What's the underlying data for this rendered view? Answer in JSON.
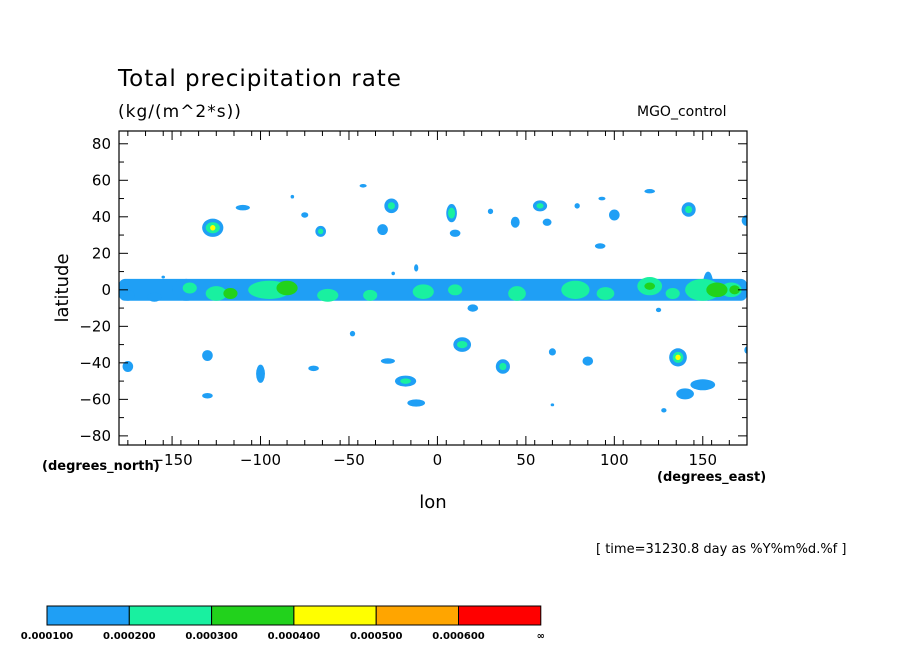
{
  "header": {
    "title": "Total precipitation rate",
    "subtitle": "(kg/(m^2*s))",
    "run_label": "MGO_control"
  },
  "footer": {
    "y_unit": "(degrees_north)",
    "x_unit": "(degrees_east)",
    "timestamp": "[ time=31230.8 day as %Y%m%d.%f ]"
  },
  "chart_data": {
    "type": "heatmap",
    "title": "Total precipitation rate",
    "subtitle": "(kg/(m^2*s))",
    "xlabel": "lon",
    "ylabel": "latitude",
    "xlim": [
      -180,
      175
    ],
    "ylim": [
      -85,
      87
    ],
    "xticks": [
      -150,
      -100,
      -50,
      0,
      50,
      100,
      150
    ],
    "xtick_labels": [
      "−150",
      "−100",
      "−50",
      "0",
      "50",
      "100",
      "150"
    ],
    "yticks": [
      80,
      60,
      40,
      20,
      0,
      -20,
      -40,
      -60,
      -80
    ],
    "ytick_labels": [
      "80",
      "60",
      "40",
      "20",
      "0",
      "−20",
      "−40",
      "−60",
      "−80"
    ],
    "grid": false,
    "colorbar": {
      "bins": [
        {
          "low": "0.000100",
          "color": "#1f9ff5"
        },
        {
          "low": "0.000200",
          "color": "#19f0a0"
        },
        {
          "low": "0.000300",
          "color": "#22d21c"
        },
        {
          "low": "0.000400",
          "color": "#ffff00"
        },
        {
          "low": "0.000500",
          "color": "#ffa500"
        },
        {
          "low": "0.000600",
          "color": "#ff0000"
        }
      ],
      "labels": [
        "0.000100",
        "0.000200",
        "0.000300",
        "0.000400",
        "0.000500",
        "0.000600",
        "∞"
      ]
    },
    "equatorial_band": {
      "lat_center": 0,
      "lat_halfwidth": 6,
      "lon_min": -180,
      "lon_max": 175
    },
    "blobs": [
      {
        "lon": -175,
        "lat": -3,
        "rx": 4,
        "ry": 3,
        "level": 1
      },
      {
        "lon": -160,
        "lat": -4,
        "rx": 4,
        "ry": 2.5,
        "level": 1
      },
      {
        "lon": -142,
        "lat": 0,
        "rx": 8,
        "ry": 6,
        "level": 1
      },
      {
        "lon": -140,
        "lat": 1,
        "rx": 4,
        "ry": 3,
        "level": 2
      },
      {
        "lon": -125,
        "lat": -2,
        "rx": 6,
        "ry": 4,
        "level": 2
      },
      {
        "lon": -117,
        "lat": -2,
        "rx": 4,
        "ry": 3,
        "level": 3
      },
      {
        "lon": -95,
        "lat": 0,
        "rx": 12,
        "ry": 5,
        "level": 2
      },
      {
        "lon": -85,
        "lat": 1,
        "rx": 6,
        "ry": 4,
        "level": 3
      },
      {
        "lon": -62,
        "lat": -3,
        "rx": 6,
        "ry": 3.5,
        "level": 2
      },
      {
        "lon": -38,
        "lat": -3,
        "rx": 4,
        "ry": 3,
        "level": 2
      },
      {
        "lon": -8,
        "lat": -1,
        "rx": 6,
        "ry": 4,
        "level": 2
      },
      {
        "lon": 10,
        "lat": 0,
        "rx": 4,
        "ry": 3,
        "level": 2
      },
      {
        "lon": 45,
        "lat": -2,
        "rx": 5,
        "ry": 4,
        "level": 2
      },
      {
        "lon": 78,
        "lat": 0,
        "rx": 8,
        "ry": 5,
        "level": 2
      },
      {
        "lon": 95,
        "lat": -2,
        "rx": 5,
        "ry": 3.5,
        "level": 2
      },
      {
        "lon": 120,
        "lat": 2,
        "rx": 7,
        "ry": 5,
        "level": 2
      },
      {
        "lon": 120,
        "lat": 2,
        "rx": 3,
        "ry": 2,
        "level": 3
      },
      {
        "lon": 133,
        "lat": -2,
        "rx": 4,
        "ry": 3,
        "level": 2
      },
      {
        "lon": 150,
        "lat": 0,
        "rx": 10,
        "ry": 6,
        "level": 2
      },
      {
        "lon": 153,
        "lat": 2,
        "rx": 3,
        "ry": 8,
        "level": 1
      },
      {
        "lon": 158,
        "lat": 0,
        "rx": 6,
        "ry": 4,
        "level": 3
      },
      {
        "lon": 166,
        "lat": 0,
        "rx": 6,
        "ry": 4,
        "level": 2
      },
      {
        "lon": 168,
        "lat": 0,
        "rx": 3,
        "ry": 2.5,
        "level": 3
      },
      {
        "lon": -127,
        "lat": 34,
        "rx": 6,
        "ry": 5,
        "level": 1
      },
      {
        "lon": -127,
        "lat": 34,
        "rx": 4,
        "ry": 3,
        "level": 2
      },
      {
        "lon": -127,
        "lat": 34,
        "rx": 1.5,
        "ry": 1.5,
        "level": 4
      },
      {
        "lon": -110,
        "lat": 45,
        "rx": 4,
        "ry": 1.5,
        "level": 1
      },
      {
        "lon": -82,
        "lat": 51,
        "rx": 1,
        "ry": 1,
        "level": 1
      },
      {
        "lon": -75,
        "lat": 41,
        "rx": 2,
        "ry": 1.5,
        "level": 1
      },
      {
        "lon": -66,
        "lat": 32,
        "rx": 3,
        "ry": 3,
        "level": 1
      },
      {
        "lon": -66,
        "lat": 32,
        "rx": 1.5,
        "ry": 1.5,
        "level": 2
      },
      {
        "lon": -42,
        "lat": 57,
        "rx": 2,
        "ry": 1,
        "level": 1
      },
      {
        "lon": -31,
        "lat": 33,
        "rx": 3,
        "ry": 3,
        "level": 1
      },
      {
        "lon": -26,
        "lat": 46,
        "rx": 4,
        "ry": 4,
        "level": 1
      },
      {
        "lon": -26,
        "lat": 46,
        "rx": 2,
        "ry": 2,
        "level": 2
      },
      {
        "lon": 8,
        "lat": 42,
        "rx": 3,
        "ry": 5,
        "level": 1
      },
      {
        "lon": 8,
        "lat": 42,
        "rx": 2,
        "ry": 3,
        "level": 2
      },
      {
        "lon": 10,
        "lat": 31,
        "rx": 3,
        "ry": 2,
        "level": 1
      },
      {
        "lon": 30,
        "lat": 43,
        "rx": 1.5,
        "ry": 1.5,
        "level": 1
      },
      {
        "lon": 44,
        "lat": 37,
        "rx": 2.5,
        "ry": 3,
        "level": 1
      },
      {
        "lon": 58,
        "lat": 46,
        "rx": 4,
        "ry": 3,
        "level": 1
      },
      {
        "lon": 58,
        "lat": 46,
        "rx": 2,
        "ry": 1.5,
        "level": 2
      },
      {
        "lon": 62,
        "lat": 37,
        "rx": 2.5,
        "ry": 2,
        "level": 1
      },
      {
        "lon": 79,
        "lat": 46,
        "rx": 1.5,
        "ry": 1.5,
        "level": 1
      },
      {
        "lon": 93,
        "lat": 50,
        "rx": 2,
        "ry": 1,
        "level": 1
      },
      {
        "lon": 100,
        "lat": 41,
        "rx": 3,
        "ry": 3,
        "level": 1
      },
      {
        "lon": 92,
        "lat": 24,
        "rx": 3,
        "ry": 1.5,
        "level": 1
      },
      {
        "lon": 120,
        "lat": 54,
        "rx": 3,
        "ry": 1.2,
        "level": 1
      },
      {
        "lon": 142,
        "lat": 44,
        "rx": 4,
        "ry": 4,
        "level": 1
      },
      {
        "lon": 142,
        "lat": 44,
        "rx": 2,
        "ry": 2,
        "level": 2
      },
      {
        "lon": 175,
        "lat": 38,
        "rx": 3,
        "ry": 3,
        "level": 1
      },
      {
        "lon": -12,
        "lat": 12,
        "rx": 1.2,
        "ry": 2,
        "level": 1
      },
      {
        "lon": -25,
        "lat": 9,
        "rx": 1,
        "ry": 1,
        "level": 1
      },
      {
        "lon": -155,
        "lat": 7,
        "rx": 1,
        "ry": 0.8,
        "level": 1
      },
      {
        "lon": -175,
        "lat": -42,
        "rx": 3,
        "ry": 3,
        "level": 1
      },
      {
        "lon": -130,
        "lat": -36,
        "rx": 3,
        "ry": 3,
        "level": 1
      },
      {
        "lon": -100,
        "lat": -46,
        "rx": 2.5,
        "ry": 5,
        "level": 1
      },
      {
        "lon": -70,
        "lat": -43,
        "rx": 3,
        "ry": 1.5,
        "level": 1
      },
      {
        "lon": -48,
        "lat": -24,
        "rx": 1.5,
        "ry": 1.5,
        "level": 1
      },
      {
        "lon": -28,
        "lat": -39,
        "rx": 4,
        "ry": 1.5,
        "level": 1
      },
      {
        "lon": -18,
        "lat": -50,
        "rx": 6,
        "ry": 3,
        "level": 1
      },
      {
        "lon": -18,
        "lat": -50,
        "rx": 3,
        "ry": 1.5,
        "level": 2
      },
      {
        "lon": -12,
        "lat": -62,
        "rx": 5,
        "ry": 2,
        "level": 1
      },
      {
        "lon": -130,
        "lat": -58,
        "rx": 3,
        "ry": 1.5,
        "level": 1
      },
      {
        "lon": 14,
        "lat": -30,
        "rx": 5,
        "ry": 4,
        "level": 1
      },
      {
        "lon": 14,
        "lat": -30,
        "rx": 3,
        "ry": 2,
        "level": 2
      },
      {
        "lon": 37,
        "lat": -42,
        "rx": 4,
        "ry": 4,
        "level": 1
      },
      {
        "lon": 37,
        "lat": -42,
        "rx": 2,
        "ry": 2,
        "level": 2
      },
      {
        "lon": 65,
        "lat": -34,
        "rx": 2,
        "ry": 2,
        "level": 1
      },
      {
        "lon": 85,
        "lat": -39,
        "rx": 3,
        "ry": 2.5,
        "level": 1
      },
      {
        "lon": 136,
        "lat": -37,
        "rx": 5,
        "ry": 5,
        "level": 1
      },
      {
        "lon": 136,
        "lat": -37,
        "rx": 3,
        "ry": 3,
        "level": 2
      },
      {
        "lon": 136,
        "lat": -37,
        "rx": 1.5,
        "ry": 1.5,
        "level": 4
      },
      {
        "lon": 150,
        "lat": -52,
        "rx": 7,
        "ry": 3,
        "level": 1
      },
      {
        "lon": 140,
        "lat": -57,
        "rx": 5,
        "ry": 3,
        "level": 1
      },
      {
        "lon": 128,
        "lat": -66,
        "rx": 1.5,
        "ry": 1.2,
        "level": 1
      },
      {
        "lon": 175,
        "lat": -33,
        "rx": 1.5,
        "ry": 2,
        "level": 1
      },
      {
        "lon": 65,
        "lat": -63,
        "rx": 1,
        "ry": 0.8,
        "level": 1
      },
      {
        "lon": 125,
        "lat": -11,
        "rx": 1.5,
        "ry": 1.2,
        "level": 1
      },
      {
        "lon": 20,
        "lat": -10,
        "rx": 3,
        "ry": 2,
        "level": 1
      }
    ]
  }
}
